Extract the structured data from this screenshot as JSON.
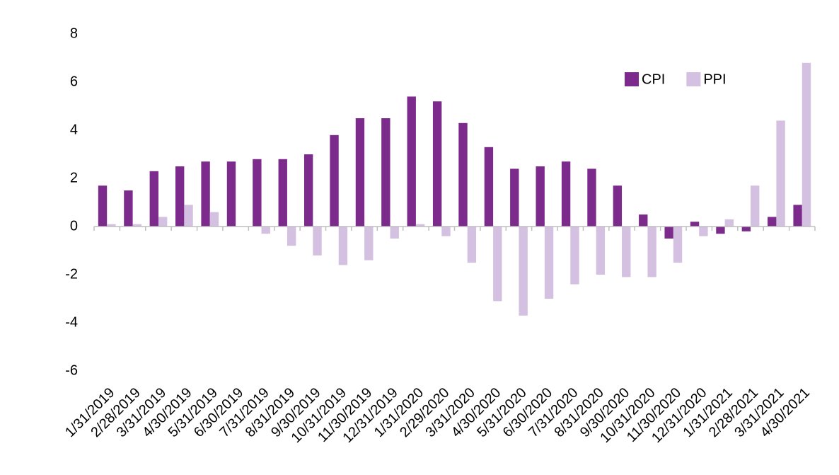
{
  "chart_data": {
    "type": "bar",
    "categories": [
      "1/31/2019",
      "2/28/2019",
      "3/31/2019",
      "4/30/2019",
      "5/31/2019",
      "6/30/2019",
      "7/31/2019",
      "8/31/2019",
      "9/30/2019",
      "10/31/2019",
      "11/30/2019",
      "12/31/2019",
      "1/31/2020",
      "2/29/2020",
      "3/31/2020",
      "4/30/2020",
      "5/31/2020",
      "6/30/2020",
      "7/31/2020",
      "8/31/2020",
      "9/30/2020",
      "10/31/2020",
      "11/30/2020",
      "12/31/2020",
      "1/31/2021",
      "2/28/2021",
      "3/31/2021",
      "4/30/2021"
    ],
    "series": [
      {
        "name": "CPI",
        "color": "#7d2a8d",
        "values": [
          1.7,
          1.5,
          2.3,
          2.5,
          2.7,
          2.7,
          2.8,
          2.8,
          3.0,
          3.8,
          4.5,
          4.5,
          5.4,
          5.2,
          4.3,
          3.3,
          2.4,
          2.5,
          2.7,
          2.4,
          1.7,
          0.5,
          -0.5,
          0.2,
          -0.3,
          -0.2,
          0.4,
          0.9
        ]
      },
      {
        "name": "PPI",
        "color": "#d4c0e0",
        "values": [
          0.1,
          0.1,
          0.4,
          0.9,
          0.6,
          0.0,
          -0.3,
          -0.8,
          -1.2,
          -1.6,
          -1.4,
          -0.5,
          0.1,
          -0.4,
          -1.5,
          -3.1,
          -3.7,
          -3.0,
          -2.4,
          -2.0,
          -2.1,
          -2.1,
          -1.5,
          -0.4,
          0.3,
          1.7,
          4.4,
          6.8
        ]
      }
    ],
    "ylim": [
      -6,
      8
    ],
    "yticks": [
      -6,
      -4,
      -2,
      0,
      2,
      4,
      6,
      8
    ],
    "grid": false,
    "legend": "top-right"
  }
}
